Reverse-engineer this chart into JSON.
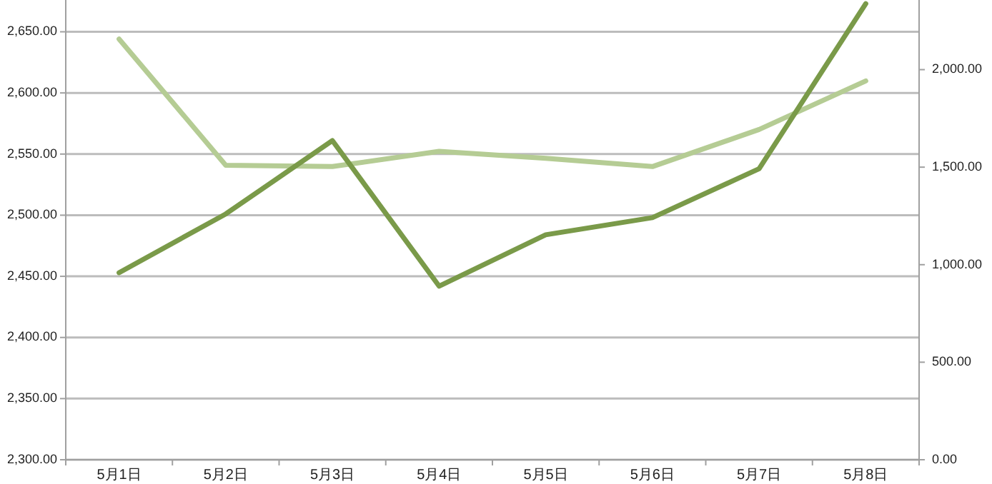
{
  "chart_data": {
    "type": "line",
    "grid": "y",
    "categories": [
      "5月1日",
      "5月2日",
      "5月3日",
      "5月4日",
      "5月5日",
      "5月6日",
      "5月7日",
      "5月8日"
    ],
    "series": [
      {
        "color": "#b5cc94",
        "axis": "y2",
        "values": [
          2157,
          1510,
          1503,
          1581,
          1545,
          1503,
          1693,
          1942
        ]
      },
      {
        "color": "#7a9a49",
        "values": [
          2453,
          2501,
          2561,
          2442,
          2484,
          2498,
          2538,
          2673
        ]
      }
    ],
    "ylim": [
      2300,
      2676
    ],
    "yticks": [
      {
        "value": 2300,
        "label": "2,300.00"
      },
      {
        "value": 2350,
        "label": "2,350.00"
      },
      {
        "value": 2400,
        "label": "2,400.00"
      },
      {
        "value": 2450,
        "label": "2,450.00"
      },
      {
        "value": 2500,
        "label": "2,500.00"
      },
      {
        "value": 2550,
        "label": "2,550.00"
      },
      {
        "value": 2600,
        "label": "2,600.00"
      },
      {
        "value": 2650,
        "label": "2,650.00"
      }
    ],
    "y2lim": [
      0,
      2357
    ],
    "y2ticks": [
      {
        "value": 0,
        "label": "0.00"
      },
      {
        "value": 500,
        "label": "500.00"
      },
      {
        "value": 1000,
        "label": "1,000.00"
      },
      {
        "value": 1500,
        "label": "1,500.00"
      },
      {
        "value": 2000,
        "label": "2,000.00"
      }
    ]
  }
}
